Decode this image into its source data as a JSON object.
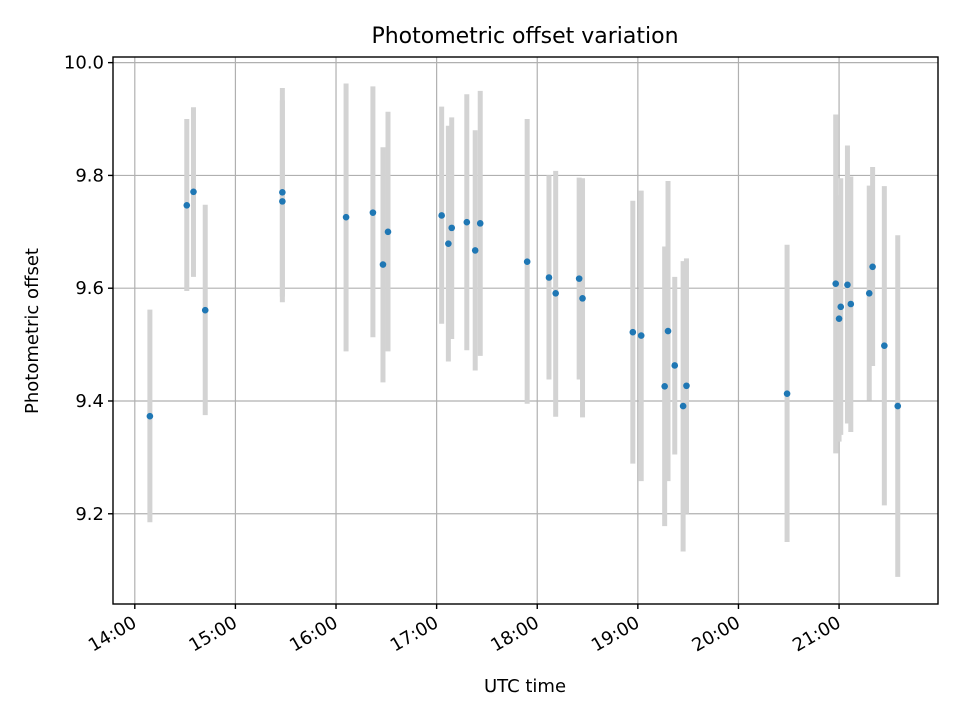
{
  "chart_data": {
    "type": "scatter",
    "title": "Photometric offset variation",
    "xlabel": "UTC time",
    "ylabel": "Photometric offset",
    "xlim": [
      "13:47",
      "21:59"
    ],
    "ylim": [
      9.04,
      10.01
    ],
    "x_ticks": [
      "14:00",
      "15:00",
      "16:00",
      "17:00",
      "18:00",
      "19:00",
      "20:00",
      "21:00"
    ],
    "y_ticks": [
      "9.2",
      "9.4",
      "9.6",
      "9.8",
      "10.0"
    ],
    "grid": true,
    "colors": {
      "point": "#1f77b4",
      "errorbar": "#d3d3d3"
    },
    "points": [
      {
        "x": "14:09",
        "y": 9.373,
        "ylo": 9.185,
        "yhi": 9.562
      },
      {
        "x": "14:31",
        "y": 9.747,
        "ylo": 9.595,
        "yhi": 9.9
      },
      {
        "x": "14:35",
        "y": 9.771,
        "ylo": 9.62,
        "yhi": 9.921
      },
      {
        "x": "14:42",
        "y": 9.561,
        "ylo": 9.375,
        "yhi": 9.748
      },
      {
        "x": "15:28",
        "y": 9.77,
        "ylo": 9.585,
        "yhi": 9.955
      },
      {
        "x": "15:28",
        "y": 9.754,
        "ylo": 9.575,
        "yhi": 9.933
      },
      {
        "x": "16:06",
        "y": 9.726,
        "ylo": 9.488,
        "yhi": 9.963
      },
      {
        "x": "16:22",
        "y": 9.734,
        "ylo": 9.513,
        "yhi": 9.958
      },
      {
        "x": "16:28",
        "y": 9.642,
        "ylo": 9.433,
        "yhi": 9.85
      },
      {
        "x": "16:31",
        "y": 9.7,
        "ylo": 9.488,
        "yhi": 9.913
      },
      {
        "x": "17:03",
        "y": 9.729,
        "ylo": 9.537,
        "yhi": 9.922
      },
      {
        "x": "17:07",
        "y": 9.679,
        "ylo": 9.47,
        "yhi": 9.888
      },
      {
        "x": "17:09",
        "y": 9.707,
        "ylo": 9.51,
        "yhi": 9.903
      },
      {
        "x": "17:18",
        "y": 9.717,
        "ylo": 9.49,
        "yhi": 9.944
      },
      {
        "x": "17:23",
        "y": 9.667,
        "ylo": 9.454,
        "yhi": 9.88
      },
      {
        "x": "17:26",
        "y": 9.715,
        "ylo": 9.48,
        "yhi": 9.95
      },
      {
        "x": "17:54",
        "y": 9.647,
        "ylo": 9.395,
        "yhi": 9.9
      },
      {
        "x": "18:07",
        "y": 9.619,
        "ylo": 9.438,
        "yhi": 9.8
      },
      {
        "x": "18:11",
        "y": 9.591,
        "ylo": 9.372,
        "yhi": 9.808
      },
      {
        "x": "18:25",
        "y": 9.617,
        "ylo": 9.438,
        "yhi": 9.796
      },
      {
        "x": "18:27",
        "y": 9.582,
        "ylo": 9.371,
        "yhi": 9.795
      },
      {
        "x": "18:57",
        "y": 9.522,
        "ylo": 9.289,
        "yhi": 9.755
      },
      {
        "x": "19:02",
        "y": 9.516,
        "ylo": 9.258,
        "yhi": 9.773
      },
      {
        "x": "19:16",
        "y": 9.426,
        "ylo": 9.178,
        "yhi": 9.674
      },
      {
        "x": "19:18",
        "y": 9.524,
        "ylo": 9.258,
        "yhi": 9.79
      },
      {
        "x": "19:22",
        "y": 9.463,
        "ylo": 9.305,
        "yhi": 9.62
      },
      {
        "x": "19:27",
        "y": 9.391,
        "ylo": 9.133,
        "yhi": 9.648
      },
      {
        "x": "19:29",
        "y": 9.427,
        "ylo": 9.2,
        "yhi": 9.653
      },
      {
        "x": "20:29",
        "y": 9.413,
        "ylo": 9.15,
        "yhi": 9.677
      },
      {
        "x": "20:58",
        "y": 9.608,
        "ylo": 9.307,
        "yhi": 9.908
      },
      {
        "x": "21:00",
        "y": 9.546,
        "ylo": 9.328,
        "yhi": 9.765
      },
      {
        "x": "21:01",
        "y": 9.567,
        "ylo": 9.34,
        "yhi": 9.795
      },
      {
        "x": "21:05",
        "y": 9.606,
        "ylo": 9.36,
        "yhi": 9.853
      },
      {
        "x": "21:07",
        "y": 9.572,
        "ylo": 9.345,
        "yhi": 9.798
      },
      {
        "x": "21:18",
        "y": 9.591,
        "ylo": 9.401,
        "yhi": 9.782
      },
      {
        "x": "21:20",
        "y": 9.638,
        "ylo": 9.462,
        "yhi": 9.815
      },
      {
        "x": "21:27",
        "y": 9.498,
        "ylo": 9.215,
        "yhi": 9.781
      },
      {
        "x": "21:35",
        "y": 9.391,
        "ylo": 9.088,
        "yhi": 9.694
      }
    ]
  }
}
